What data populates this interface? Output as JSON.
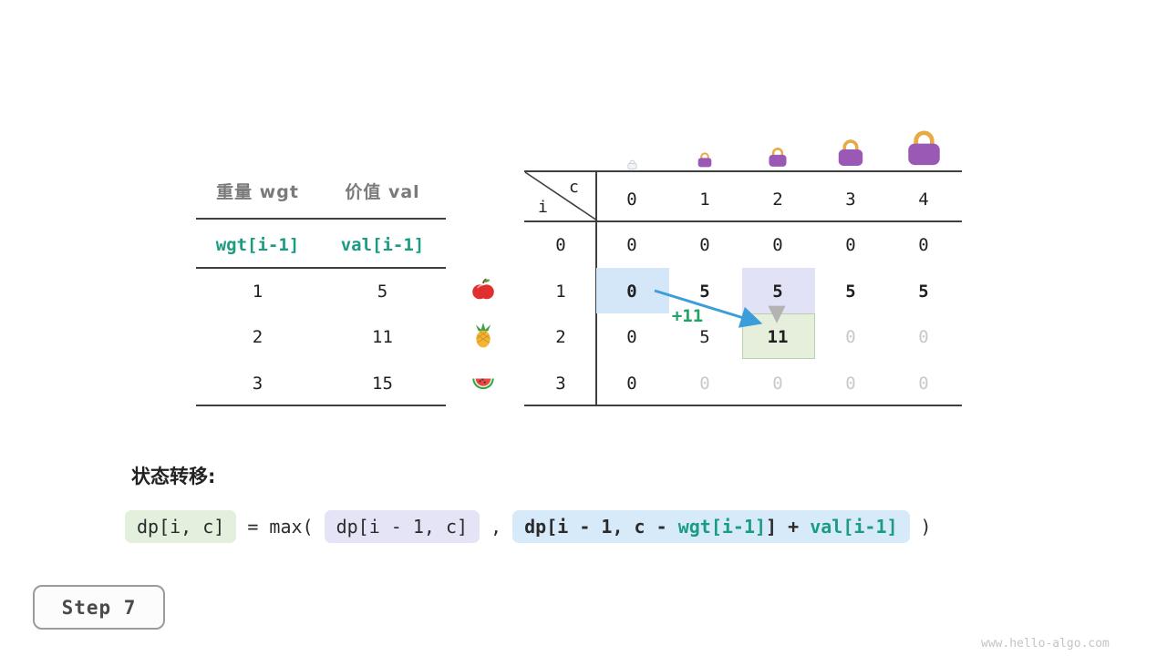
{
  "watermark": "www.hello-algo.com",
  "step": {
    "label": "Step 7"
  },
  "section_title": "状态转移:",
  "transition": {
    "lhs": "dp[i, c]",
    "op": "= max(",
    "arg1": "dp[i - 1, c]",
    "comma": ",",
    "arg2_prefix": "dp[i - 1, c - ",
    "arg2_wgt": "wgt[i-1]",
    "arg2_mid": "] + ",
    "arg2_val": "val[i-1]",
    "close": ")"
  },
  "items_table": {
    "col1_header": "重量 wgt",
    "col2_header": "价值 val",
    "col1_subheader": "wgt[i-1]",
    "col2_subheader": "val[i-1]",
    "rows": [
      {
        "wgt": "1",
        "val": "5",
        "icon": "apple-icon"
      },
      {
        "wgt": "2",
        "val": "11",
        "icon": "pineapple-icon"
      },
      {
        "wgt": "3",
        "val": "15",
        "icon": "watermelon-icon"
      }
    ]
  },
  "dp_table": {
    "corner_col": "c",
    "corner_row": "i",
    "col_headers": [
      "0",
      "1",
      "2",
      "3",
      "4"
    ],
    "row_headers": [
      "0",
      "1",
      "2",
      "3"
    ],
    "bags": [
      "bag-tiny-icon",
      "bag-small-icon",
      "bag-medium-icon",
      "bag-large-icon",
      "bag-xlarge-icon"
    ],
    "cells": [
      [
        {
          "v": "0"
        },
        {
          "v": "0"
        },
        {
          "v": "0"
        },
        {
          "v": "0"
        },
        {
          "v": "0"
        }
      ],
      [
        {
          "v": "0",
          "hl": "blue",
          "b": true
        },
        {
          "v": "5",
          "b": true
        },
        {
          "v": "5",
          "hl": "lavender",
          "b": true
        },
        {
          "v": "5",
          "b": true
        },
        {
          "v": "5",
          "b": true
        }
      ],
      [
        {
          "v": "0"
        },
        {
          "v": "5"
        },
        {
          "v": "11",
          "hl": "green",
          "b": true
        },
        {
          "v": "0",
          "dim": true
        },
        {
          "v": "0",
          "dim": true
        }
      ],
      [
        {
          "v": "0"
        },
        {
          "v": "0",
          "dim": true
        },
        {
          "v": "0",
          "dim": true
        },
        {
          "v": "0",
          "dim": true
        },
        {
          "v": "0",
          "dim": true
        }
      ]
    ],
    "arrow_label": "+11"
  },
  "colors": {
    "teal": "#1a9c82",
    "arrow_blue": "#3b9dd9",
    "hl_blue": "#d3e7f8",
    "hl_lavender": "#e2e2f6",
    "hl_green": "#e5efdc",
    "plus_green": "#21a366",
    "bag_body": "#9b59b6",
    "bag_handle": "#e8aa42"
  }
}
